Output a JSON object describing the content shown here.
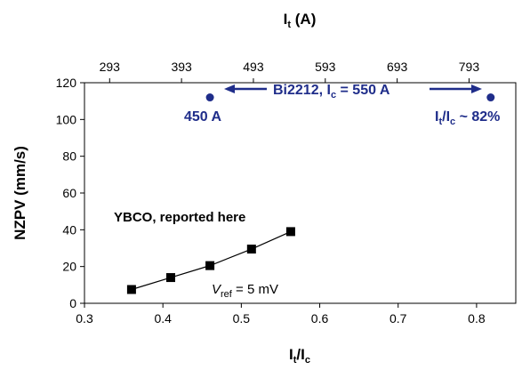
{
  "chart_data": {
    "type": "scatter",
    "x_bottom": {
      "title": "I",
      "title_sub": "t",
      "title_rest": "/I",
      "title_sub2": "c",
      "range": [
        0.3,
        0.85
      ],
      "ticks": [
        "0.3",
        "0.4",
        "0.5",
        "0.6",
        "0.7",
        "0.8"
      ]
    },
    "x_top": {
      "title": "I",
      "title_sub": "t",
      "title_rest": " (A)",
      "range": [
        258,
        858
      ],
      "ticks": [
        "293",
        "393",
        "493",
        "593",
        "693",
        "793"
      ]
    },
    "y": {
      "title": "NZPV (mm/s)",
      "range": [
        0,
        120
      ],
      "ticks": [
        "0",
        "20",
        "40",
        "60",
        "80",
        "100",
        "120"
      ]
    },
    "series": [
      {
        "name": "YBCO, reported here",
        "marker": "square",
        "color": "#000000",
        "line": true,
        "points": [
          [
            0.36,
            7.5
          ],
          [
            0.41,
            14.0
          ],
          [
            0.46,
            20.5
          ],
          [
            0.513,
            29.5
          ],
          [
            0.563,
            39.0
          ]
        ]
      },
      {
        "name": "Bi2212",
        "marker": "circle",
        "color": "#1f2d8a",
        "line": false,
        "points": [
          [
            0.46,
            112.0
          ],
          [
            0.818,
            112.0
          ]
        ]
      }
    ],
    "annotations": {
      "bi2212_prefix": "Bi2212, I",
      "bi2212_sub": "c",
      "bi2212_rest": " = 550 A",
      "left_point_label": "450 A",
      "right_label_prefix": "I",
      "right_label_sub1": "t",
      "right_label_mid": "/I",
      "right_label_sub2": "c",
      "right_label_rest": " ~ 82%",
      "ybco_label": "YBCO, reported here",
      "vref_v": "V",
      "vref_sub": "ref",
      "vref_rest": " = 5 mV"
    }
  }
}
